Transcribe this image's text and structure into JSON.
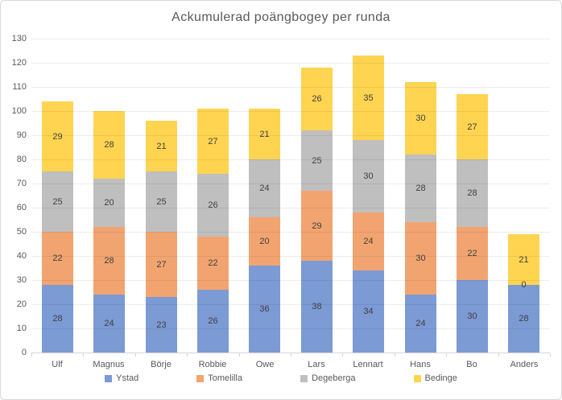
{
  "chart_data": {
    "type": "bar",
    "stacked": true,
    "title": "Ackumulerad poängbogey per runda",
    "categories": [
      "Ulf",
      "Magnus",
      "Börje",
      "Robbie",
      "Owe",
      "Lars",
      "Lennart",
      "Hans",
      "Bo",
      "Anders"
    ],
    "series": [
      {
        "name": "Ystad",
        "color": "#7c9ad4",
        "values": [
          28,
          24,
          23,
          26,
          36,
          38,
          34,
          24,
          30,
          28
        ]
      },
      {
        "name": "Tomelilla",
        "color": "#f2a470",
        "values": [
          22,
          28,
          27,
          22,
          20,
          29,
          24,
          30,
          22,
          0
        ]
      },
      {
        "name": "Degeberga",
        "color": "#bfbfbf",
        "values": [
          25,
          20,
          25,
          26,
          24,
          25,
          30,
          28,
          28,
          0
        ]
      },
      {
        "name": "Bedinge",
        "color": "#ffd451",
        "values": [
          29,
          28,
          21,
          27,
          21,
          26,
          35,
          30,
          27,
          21
        ]
      }
    ],
    "totals": [
      104,
      100,
      96,
      101,
      101,
      118,
      123,
      112,
      107,
      49
    ],
    "ylim": [
      0,
      130
    ],
    "ytick_step": 10,
    "grid": true,
    "data_labels": true,
    "legend_position": "bottom",
    "colors": {
      "title_text": "#595959",
      "axis_text": "#595959",
      "data_label_text": "#404040",
      "gridline": "rgba(0,0,0,0.07)",
      "axis_line": "#d6d6d6",
      "frame_border": "#d9d9d9",
      "background": "#ffffff"
    }
  }
}
